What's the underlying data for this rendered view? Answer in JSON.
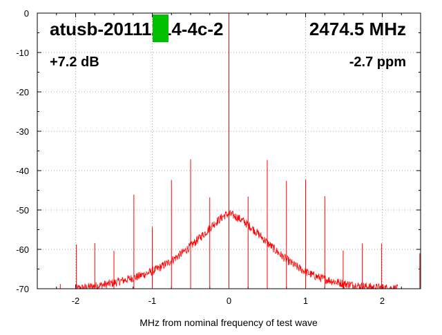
{
  "chart_data": {
    "type": "line",
    "title": "atusb-20111214-4c-2",
    "frequency_label": "2474.5 MHz",
    "gain_label": "+7.2 dB",
    "ppm_label": "-2.7 ppm",
    "xlabel": "MHz from nominal frequency of test wave",
    "ylabel": "",
    "xlim": [
      -2.5,
      2.5
    ],
    "ylim": [
      -70,
      0
    ],
    "x_ticks": [
      {
        "value": -2,
        "label": "-2"
      },
      {
        "value": -1,
        "label": "-1"
      },
      {
        "value": 0,
        "label": "0"
      },
      {
        "value": 1,
        "label": "1"
      },
      {
        "value": 2,
        "label": "2"
      }
    ],
    "y_ticks": [
      {
        "value": 0,
        "label": "0"
      },
      {
        "value": -10,
        "label": "-10"
      },
      {
        "value": -20,
        "label": "-20"
      },
      {
        "value": -30,
        "label": "-30"
      },
      {
        "value": -40,
        "label": "-40"
      },
      {
        "value": -50,
        "label": "-50"
      },
      {
        "value": -60,
        "label": "-60"
      },
      {
        "value": -70,
        "label": "-70"
      }
    ],
    "grid": true,
    "series_color": "#ff0000",
    "marker_color": "#00c000",
    "noise_envelope": [
      {
        "x": -2.0,
        "y": -70.0
      },
      {
        "x": -1.9,
        "y": -69.8
      },
      {
        "x": -1.8,
        "y": -69.5
      },
      {
        "x": -1.7,
        "y": -69.2
      },
      {
        "x": -1.6,
        "y": -68.9
      },
      {
        "x": -1.5,
        "y": -68.5
      },
      {
        "x": -1.4,
        "y": -68.0
      },
      {
        "x": -1.3,
        "y": -67.5
      },
      {
        "x": -1.2,
        "y": -67.0
      },
      {
        "x": -1.1,
        "y": -66.3
      },
      {
        "x": -1.0,
        "y": -65.6
      },
      {
        "x": -0.9,
        "y": -64.6
      },
      {
        "x": -0.8,
        "y": -63.5
      },
      {
        "x": -0.7,
        "y": -62.2
      },
      {
        "x": -0.6,
        "y": -60.8
      },
      {
        "x": -0.5,
        "y": -59.2
      },
      {
        "x": -0.4,
        "y": -57.4
      },
      {
        "x": -0.3,
        "y": -55.6
      },
      {
        "x": -0.2,
        "y": -53.6
      },
      {
        "x": -0.1,
        "y": -52.0
      },
      {
        "x": -0.05,
        "y": -51.3
      },
      {
        "x": 0.0,
        "y": -51.0
      },
      {
        "x": 0.05,
        "y": -51.3
      },
      {
        "x": 0.1,
        "y": -51.8
      },
      {
        "x": 0.2,
        "y": -53.0
      },
      {
        "x": 0.3,
        "y": -54.6
      },
      {
        "x": 0.4,
        "y": -56.4
      },
      {
        "x": 0.5,
        "y": -58.3
      },
      {
        "x": 0.6,
        "y": -60.1
      },
      {
        "x": 0.7,
        "y": -61.8
      },
      {
        "x": 0.8,
        "y": -63.3
      },
      {
        "x": 0.9,
        "y": -64.6
      },
      {
        "x": 1.0,
        "y": -65.7
      },
      {
        "x": 1.1,
        "y": -66.6
      },
      {
        "x": 1.2,
        "y": -67.3
      },
      {
        "x": 1.3,
        "y": -67.8
      },
      {
        "x": 1.4,
        "y": -68.3
      },
      {
        "x": 1.5,
        "y": -68.7
      },
      {
        "x": 1.6,
        "y": -69.0
      },
      {
        "x": 1.7,
        "y": -69.3
      },
      {
        "x": 1.8,
        "y": -69.5
      },
      {
        "x": 1.9,
        "y": -69.7
      },
      {
        "x": 2.0,
        "y": -69.8
      },
      {
        "x": 2.1,
        "y": -69.9
      },
      {
        "x": 2.2,
        "y": -70.0
      }
    ],
    "spurs": [
      {
        "x": -2.2,
        "y": -68.8
      },
      {
        "x": -1.99,
        "y": -58.8
      },
      {
        "x": -1.75,
        "y": -58.4
      },
      {
        "x": -1.5,
        "y": -60.4
      },
      {
        "x": -1.24,
        "y": -46.1
      },
      {
        "x": -1.0,
        "y": -54.3
      },
      {
        "x": -0.75,
        "y": -42.4
      },
      {
        "x": -0.5,
        "y": -37.1
      },
      {
        "x": -0.25,
        "y": -46.8
      },
      {
        "x": 0.0,
        "y": 0.0
      },
      {
        "x": 0.25,
        "y": -46.6
      },
      {
        "x": 0.5,
        "y": -37.3
      },
      {
        "x": 0.75,
        "y": -42.6
      },
      {
        "x": 1.0,
        "y": -42.3
      },
      {
        "x": 1.25,
        "y": -46.5
      },
      {
        "x": 1.49,
        "y": -60.3
      },
      {
        "x": 1.74,
        "y": -58.5
      },
      {
        "x": 1.99,
        "y": -58.5
      },
      {
        "x": 2.49,
        "y": -61.0
      }
    ]
  }
}
